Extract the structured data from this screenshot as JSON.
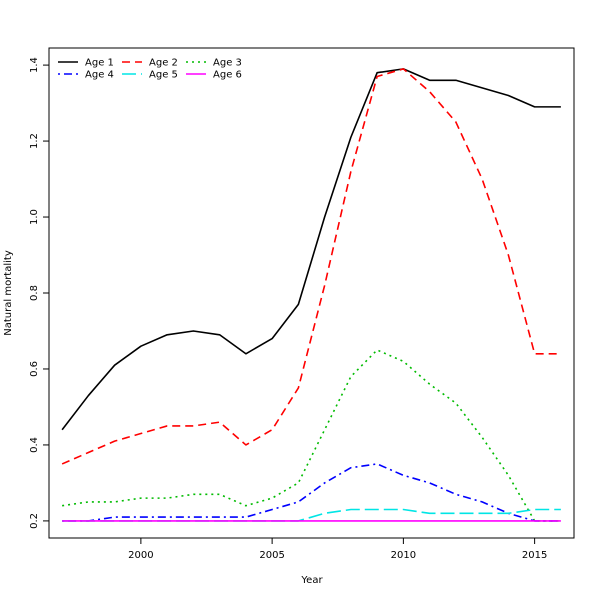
{
  "chart_data": {
    "type": "line",
    "xlabel": "Year",
    "ylabel": "Natural mortality",
    "xlim": [
      1996.5,
      2016.5
    ],
    "ylim": [
      0.155,
      1.445
    ],
    "xticks": [
      2000,
      2005,
      2010,
      2015
    ],
    "yticks": [
      0.2,
      0.4,
      0.6,
      0.8,
      1.0,
      1.2,
      1.4
    ],
    "ytick_labels": [
      "0.2",
      "0.4",
      "0.6",
      "0.8",
      "1.0",
      "1.2",
      "1.4"
    ],
    "grid": false,
    "legend_position": "top-left",
    "x": [
      1997,
      1998,
      1999,
      2000,
      2001,
      2002,
      2003,
      2004,
      2005,
      2006,
      2007,
      2008,
      2009,
      2010,
      2011,
      2012,
      2013,
      2014,
      2015,
      2016
    ],
    "series": [
      {
        "name": "Age 1",
        "color": "#000000",
        "dash": "solid",
        "values": [
          0.44,
          0.53,
          0.61,
          0.66,
          0.69,
          0.7,
          0.69,
          0.64,
          0.68,
          0.77,
          1.0,
          1.21,
          1.38,
          1.39,
          1.36,
          1.36,
          1.34,
          1.32,
          1.29,
          1.29
        ]
      },
      {
        "name": "Age 2",
        "color": "#ff0000",
        "dash": "dashed",
        "values": [
          0.35,
          0.38,
          0.41,
          0.43,
          0.45,
          0.45,
          0.46,
          0.4,
          0.44,
          0.55,
          0.82,
          1.12,
          1.37,
          1.39,
          1.33,
          1.25,
          1.1,
          0.9,
          0.64,
          0.64
        ]
      },
      {
        "name": "Age 3",
        "color": "#00bb00",
        "dash": "dotted",
        "values": [
          0.24,
          0.25,
          0.25,
          0.26,
          0.26,
          0.27,
          0.27,
          0.24,
          0.26,
          0.3,
          0.44,
          0.58,
          0.65,
          0.62,
          0.56,
          0.51,
          0.42,
          0.32,
          0.2,
          0.2
        ]
      },
      {
        "name": "Age 4",
        "color": "#0000ff",
        "dash": "dotdash",
        "values": [
          0.2,
          0.2,
          0.21,
          0.21,
          0.21,
          0.21,
          0.21,
          0.21,
          0.23,
          0.25,
          0.3,
          0.34,
          0.35,
          0.32,
          0.3,
          0.27,
          0.25,
          0.22,
          0.2,
          0.2
        ]
      },
      {
        "name": "Age 5",
        "color": "#00e5e5",
        "dash": "longdash",
        "values": [
          0.2,
          0.2,
          0.2,
          0.2,
          0.2,
          0.2,
          0.2,
          0.2,
          0.2,
          0.2,
          0.22,
          0.23,
          0.23,
          0.23,
          0.22,
          0.22,
          0.22,
          0.22,
          0.23,
          0.23
        ]
      },
      {
        "name": "Age 6",
        "color": "#ff00ff",
        "dash": "solid",
        "values": [
          0.2,
          0.2,
          0.2,
          0.2,
          0.2,
          0.2,
          0.2,
          0.2,
          0.2,
          0.2,
          0.2,
          0.2,
          0.2,
          0.2,
          0.2,
          0.2,
          0.2,
          0.2,
          0.2,
          0.2
        ]
      }
    ]
  }
}
